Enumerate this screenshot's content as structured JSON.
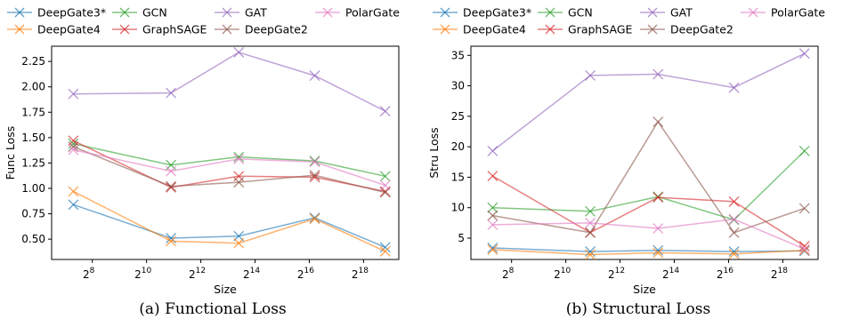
{
  "colors": {
    "DeepGate3*": "#1f77b4",
    "DeepGate4": "#ff7f0e",
    "GCN": "#2ca02c",
    "GraphSAGE": "#d62728",
    "GAT": "#9467bd",
    "DeepGate2": "#8c564b",
    "PolarGate": "#e377c2"
  },
  "captions": {
    "left": "(a) Functional Loss",
    "right": "(b) Structural Loss"
  },
  "chart_data": [
    {
      "type": "line",
      "title": "",
      "xlabel": "Size",
      "ylabel": "Func Loss",
      "x_scale": "log2",
      "x": [
        7.3,
        10.9,
        13.4,
        16.2,
        18.8
      ],
      "x_ticks": [
        8,
        10,
        12,
        14,
        16,
        18
      ],
      "x_tick_labels": [
        "2^8",
        "2^10",
        "2^12",
        "2^14",
        "2^16",
        "2^18"
      ],
      "xlim": [
        6.5,
        19.3
      ],
      "ylim": [
        0.3,
        2.4
      ],
      "y_ticks": [
        0.5,
        0.75,
        1.0,
        1.25,
        1.5,
        1.75,
        2.0,
        2.25
      ],
      "y_tick_labels": [
        "0.50",
        "0.75",
        "1.00",
        "1.25",
        "1.50",
        "1.75",
        "2.00",
        "2.25"
      ],
      "legend": "top, 4 columns",
      "legend_entries": [
        "DeepGate3*",
        "GCN",
        "GAT",
        "PolarGate",
        "DeepGate4",
        "GraphSAGE",
        "DeepGate2"
      ],
      "series": [
        {
          "name": "DeepGate3*",
          "values": [
            0.84,
            0.51,
            0.53,
            0.71,
            0.42
          ]
        },
        {
          "name": "DeepGate4",
          "values": [
            0.97,
            0.48,
            0.46,
            0.7,
            0.38
          ]
        },
        {
          "name": "GCN",
          "values": [
            1.44,
            1.23,
            1.31,
            1.27,
            1.12
          ]
        },
        {
          "name": "GraphSAGE",
          "values": [
            1.47,
            1.01,
            1.12,
            1.11,
            0.97
          ]
        },
        {
          "name": "GAT",
          "values": [
            1.93,
            1.94,
            2.34,
            2.11,
            1.76
          ]
        },
        {
          "name": "DeepGate2",
          "values": [
            1.41,
            1.02,
            1.06,
            1.13,
            0.96
          ]
        },
        {
          "name": "PolarGate",
          "values": [
            1.38,
            1.17,
            1.29,
            1.26,
            1.03
          ]
        }
      ]
    },
    {
      "type": "line",
      "title": "",
      "xlabel": "Size",
      "ylabel": "Stru Loss",
      "x_scale": "log2",
      "x": [
        7.3,
        10.9,
        13.4,
        16.2,
        18.8
      ],
      "x_ticks": [
        8,
        10,
        12,
        14,
        16,
        18
      ],
      "x_tick_labels": [
        "2^8",
        "2^10",
        "2^12",
        "2^14",
        "2^16",
        "2^18"
      ],
      "xlim": [
        6.5,
        19.3
      ],
      "ylim": [
        1.5,
        36.5
      ],
      "y_ticks": [
        5,
        10,
        15,
        20,
        25,
        30,
        35
      ],
      "y_tick_labels": [
        "5",
        "10",
        "15",
        "20",
        "25",
        "30",
        "35"
      ],
      "legend": "top, 4 columns",
      "legend_entries": [
        "DeepGate3*",
        "GCN",
        "GAT",
        "PolarGate",
        "DeepGate4",
        "GraphSAGE",
        "DeepGate2"
      ],
      "series": [
        {
          "name": "DeepGate3*",
          "values": [
            3.4,
            2.8,
            3.0,
            2.8,
            2.9
          ]
        },
        {
          "name": "DeepGate4",
          "values": [
            3.1,
            2.3,
            2.6,
            2.4,
            3.0
          ]
        },
        {
          "name": "GCN",
          "values": [
            10.0,
            9.4,
            11.8,
            8.0,
            19.3
          ]
        },
        {
          "name": "GraphSAGE",
          "values": [
            15.2,
            5.9,
            11.7,
            11.0,
            3.7
          ]
        },
        {
          "name": "GAT",
          "values": [
            19.3,
            31.7,
            31.9,
            29.7,
            35.3
          ]
        },
        {
          "name": "DeepGate2",
          "values": [
            8.7,
            5.9,
            24.1,
            5.9,
            9.9
          ]
        },
        {
          "name": "PolarGate",
          "values": [
            7.2,
            7.5,
            6.6,
            8.1,
            3.2
          ]
        }
      ]
    }
  ]
}
